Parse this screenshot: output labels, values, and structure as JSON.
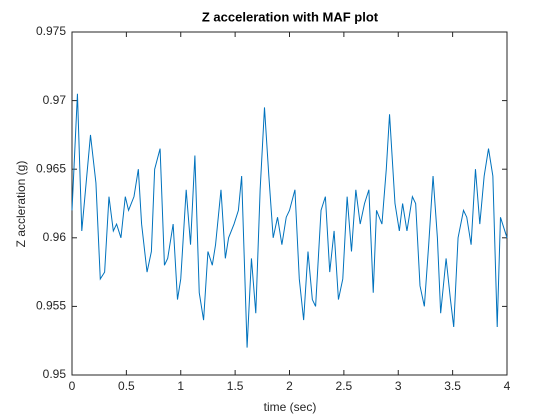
{
  "chart_data": {
    "type": "line",
    "title": "Z acceleration with MAF plot",
    "x_label": "time (sec)",
    "y_label": "Z accleration (g)",
    "x": [
      0,
      0.05,
      0.09,
      0.13,
      0.17,
      0.22,
      0.26,
      0.3,
      0.34,
      0.38,
      0.41,
      0.45,
      0.49,
      0.52,
      0.57,
      0.61,
      0.64,
      0.69,
      0.73,
      0.76,
      0.81,
      0.85,
      0.88,
      0.93,
      0.97,
      1.0,
      1.05,
      1.09,
      1.13,
      1.17,
      1.21,
      1.25,
      1.29,
      1.32,
      1.37,
      1.41,
      1.44,
      1.49,
      1.53,
      1.56,
      1.61,
      1.65,
      1.69,
      1.73,
      1.77,
      1.81,
      1.85,
      1.89,
      1.93,
      1.97,
      2.0,
      2.05,
      2.09,
      2.13,
      2.17,
      2.21,
      2.24,
      2.29,
      2.33,
      2.37,
      2.41,
      2.45,
      2.49,
      2.53,
      2.57,
      2.61,
      2.65,
      2.69,
      2.73,
      2.77,
      2.8,
      2.85,
      2.89,
      2.92,
      2.97,
      3.01,
      3.04,
      3.08,
      3.13,
      3.16,
      3.2,
      3.24,
      3.28,
      3.32,
      3.36,
      3.39,
      3.44,
      3.48,
      3.51,
      3.55,
      3.6,
      3.63,
      3.67,
      3.71,
      3.75,
      3.79,
      3.83,
      3.87,
      3.91,
      3.94,
      4.0
    ],
    "series": [
      {
        "name": "Z",
        "color": "#0072bd",
        "values": [
          0.962,
          0.9705,
          0.9605,
          0.964,
          0.9675,
          0.964,
          0.957,
          0.9575,
          0.963,
          0.9605,
          0.961,
          0.96,
          0.963,
          0.962,
          0.963,
          0.965,
          0.961,
          0.9575,
          0.959,
          0.965,
          0.9665,
          0.958,
          0.9585,
          0.961,
          0.9555,
          0.957,
          0.9635,
          0.9595,
          0.966,
          0.956,
          0.954,
          0.959,
          0.958,
          0.9595,
          0.9635,
          0.9585,
          0.96,
          0.961,
          0.962,
          0.9645,
          0.952,
          0.9585,
          0.9545,
          0.9635,
          0.9695,
          0.9645,
          0.96,
          0.9615,
          0.9595,
          0.9615,
          0.962,
          0.9635,
          0.957,
          0.954,
          0.959,
          0.9555,
          0.955,
          0.962,
          0.963,
          0.9575,
          0.9605,
          0.9555,
          0.957,
          0.963,
          0.959,
          0.9635,
          0.961,
          0.9625,
          0.9635,
          0.956,
          0.962,
          0.961,
          0.965,
          0.969,
          0.9625,
          0.9605,
          0.9625,
          0.9605,
          0.963,
          0.9625,
          0.9565,
          0.955,
          0.9595,
          0.9645,
          0.96,
          0.9545,
          0.9585,
          0.9555,
          0.9535,
          0.96,
          0.962,
          0.9615,
          0.9595,
          0.965,
          0.961,
          0.9645,
          0.9665,
          0.9645,
          0.9535,
          0.9615,
          0.96
        ]
      }
    ],
    "xlim": [
      0,
      4
    ],
    "xticks": [
      0,
      0.5,
      1,
      1.5,
      2,
      2.5,
      3,
      3.5,
      4
    ],
    "ylim": [
      0.95,
      0.975
    ],
    "yticks": [
      0.95,
      0.955,
      0.96,
      0.965,
      0.97,
      0.975
    ],
    "grid": false
  }
}
